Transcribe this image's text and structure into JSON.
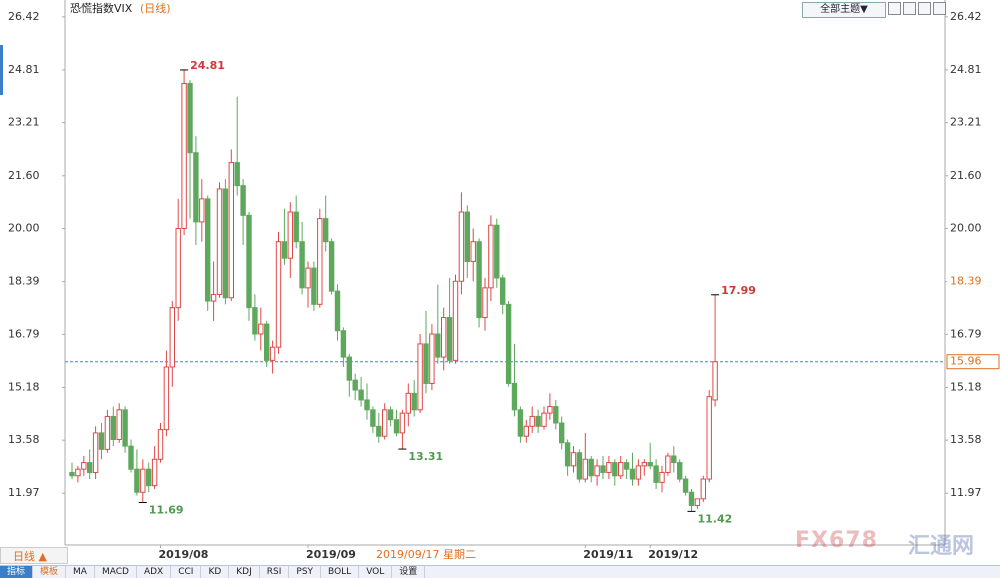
{
  "chart_data": {
    "type": "candlestick",
    "title": "恐慌指数VIX",
    "period": "(日线)",
    "theme_button": "全部主题▼",
    "period_selector": "日线 ▲",
    "tabs": [
      "指标",
      "模板",
      "MA",
      "MACD",
      "ADX",
      "CCI",
      "KD",
      "KDJ",
      "RSI",
      "PSY",
      "BOLL",
      "VOL",
      "设置"
    ],
    "watermark": [
      "FX678",
      "汇通网"
    ],
    "up_color": "#e04848",
    "down_color": "#5ea85e",
    "ylim": [
      10.4,
      26.78
    ],
    "yticks": [
      26.42,
      24.81,
      23.21,
      {
        "value": 21.6,
        "label": "21.60"
      },
      {
        "value": 20,
        "label": "20.00"
      },
      18.39,
      16.79,
      15.18,
      13.58,
      11.97
    ],
    "categories": [
      null,
      null,
      null,
      null,
      null,
      null,
      null,
      null,
      null,
      null,
      null,
      null,
      null,
      null,
      null,
      "2019/08",
      null,
      null,
      null,
      null,
      null,
      null,
      null,
      null,
      null,
      null,
      null,
      null,
      null,
      null,
      null,
      null,
      null,
      null,
      null,
      null,
      null,
      null,
      null,
      null,
      "2019/09",
      null,
      null,
      null,
      null,
      null,
      null,
      null,
      null,
      null,
      null,
      null,
      null,
      null,
      null,
      null,
      null,
      null,
      null,
      null,
      null,
      null,
      null,
      null,
      null,
      null,
      null,
      null,
      null,
      null,
      null,
      null,
      null,
      null,
      null,
      null,
      null,
      null,
      null,
      null,
      null,
      null,
      null,
      null,
      null,
      null,
      null,
      "2019/11",
      null,
      null,
      null,
      null,
      null,
      null,
      null,
      null,
      null,
      null,
      "2019/12",
      null
    ],
    "candles": [
      [
        12.6,
        12.9,
        12.4,
        12.5
      ],
      [
        12.5,
        12.8,
        12.3,
        12.7
      ],
      [
        12.7,
        13.1,
        12.5,
        12.9
      ],
      [
        12.9,
        13.3,
        12.4,
        12.6
      ],
      [
        12.6,
        14.0,
        12.4,
        13.8
      ],
      [
        13.8,
        14.1,
        13.0,
        13.3
      ],
      [
        13.3,
        14.5,
        13.2,
        14.3
      ],
      [
        14.3,
        14.6,
        13.4,
        13.6
      ],
      [
        13.6,
        14.7,
        13.5,
        14.5
      ],
      [
        14.5,
        14.6,
        13.2,
        13.4
      ],
      [
        13.4,
        13.6,
        12.6,
        12.7
      ],
      [
        12.7,
        13.3,
        11.9,
        12.0
      ],
      [
        12.0,
        13.0,
        11.69,
        12.7
      ],
      [
        12.7,
        12.9,
        12.0,
        12.2
      ],
      [
        12.2,
        13.4,
        12.1,
        13.0
      ],
      [
        13.0,
        14.1,
        12.9,
        13.9
      ],
      [
        13.9,
        16.3,
        13.7,
        15.8
      ],
      [
        15.8,
        17.8,
        15.2,
        17.6
      ],
      [
        17.6,
        20.9,
        17.2,
        20.0
      ],
      [
        20.0,
        24.81,
        19.8,
        24.4
      ],
      [
        24.4,
        24.5,
        20.3,
        22.3
      ],
      [
        22.3,
        22.8,
        19.5,
        20.2
      ],
      [
        20.2,
        21.5,
        19.6,
        20.9
      ],
      [
        20.9,
        21.0,
        17.5,
        17.8
      ],
      [
        17.8,
        19.0,
        17.2,
        18.0
      ],
      [
        18.0,
        21.4,
        17.9,
        21.2
      ],
      [
        21.2,
        21.5,
        17.7,
        17.9
      ],
      [
        17.9,
        22.4,
        17.8,
        22.0
      ],
      [
        22.0,
        24.0,
        21.0,
        21.3
      ],
      [
        21.3,
        21.5,
        19.5,
        20.4
      ],
      [
        20.4,
        20.5,
        17.2,
        17.6
      ],
      [
        17.6,
        18.0,
        16.6,
        16.8
      ],
      [
        16.8,
        17.6,
        16.3,
        17.1
      ],
      [
        17.1,
        17.2,
        15.8,
        16.0
      ],
      [
        16.0,
        16.6,
        15.6,
        16.4
      ],
      [
        16.4,
        19.9,
        16.2,
        19.6
      ],
      [
        19.6,
        20.6,
        18.9,
        19.1
      ],
      [
        19.1,
        20.8,
        18.5,
        20.5
      ],
      [
        20.5,
        21.0,
        19.4,
        19.6
      ],
      [
        19.6,
        20.2,
        18.0,
        18.2
      ],
      [
        18.2,
        19.0,
        17.6,
        18.8
      ],
      [
        18.8,
        19.0,
        17.5,
        17.7
      ],
      [
        17.7,
        20.6,
        17.6,
        20.3
      ],
      [
        20.3,
        21.0,
        19.3,
        19.6
      ],
      [
        19.6,
        19.7,
        18.0,
        18.1
      ],
      [
        18.1,
        18.3,
        16.6,
        16.9
      ],
      [
        16.9,
        17.0,
        15.8,
        16.1
      ],
      [
        16.1,
        16.2,
        14.9,
        15.4
      ],
      [
        15.4,
        15.6,
        14.8,
        15.1
      ],
      [
        15.1,
        15.5,
        14.6,
        14.8
      ],
      [
        14.8,
        15.3,
        14.2,
        14.5
      ],
      [
        14.5,
        14.6,
        13.8,
        14.0
      ],
      [
        14.0,
        14.4,
        13.5,
        13.7
      ],
      [
        13.7,
        14.7,
        13.6,
        14.5
      ],
      [
        14.5,
        14.6,
        14.0,
        14.2
      ],
      [
        14.2,
        14.5,
        13.7,
        13.8
      ],
      [
        13.8,
        14.5,
        13.31,
        14.4
      ],
      [
        14.4,
        15.3,
        14.0,
        15.0
      ],
      [
        15.0,
        15.4,
        14.3,
        14.5
      ],
      [
        14.5,
        16.8,
        14.4,
        16.5
      ],
      [
        16.5,
        17.5,
        15.0,
        15.3
      ],
      [
        15.3,
        17.1,
        15.1,
        16.8
      ],
      [
        16.8,
        18.3,
        15.9,
        16.1
      ],
      [
        16.1,
        17.6,
        15.7,
        17.3
      ],
      [
        17.3,
        18.5,
        15.9,
        16.0
      ],
      [
        16.0,
        18.6,
        15.9,
        18.4
      ],
      [
        18.4,
        21.1,
        18.0,
        20.5
      ],
      [
        20.5,
        20.7,
        18.5,
        19.0
      ],
      [
        19.0,
        20.0,
        18.4,
        19.6
      ],
      [
        19.6,
        19.7,
        17.0,
        17.3
      ],
      [
        17.3,
        18.5,
        16.9,
        18.2
      ],
      [
        18.2,
        20.4,
        17.8,
        20.1
      ],
      [
        20.1,
        20.3,
        18.2,
        18.5
      ],
      [
        18.5,
        18.6,
        17.4,
        17.7
      ],
      [
        17.7,
        17.8,
        15.2,
        15.3
      ],
      [
        15.3,
        16.5,
        14.3,
        14.5
      ],
      [
        14.5,
        14.6,
        13.5,
        13.7
      ],
      [
        13.7,
        14.2,
        13.5,
        14.0
      ],
      [
        14.0,
        14.6,
        13.8,
        14.3
      ],
      [
        14.3,
        14.5,
        13.8,
        14.0
      ],
      [
        14.0,
        14.6,
        13.9,
        14.4
      ],
      [
        14.4,
        15.0,
        14.2,
        14.6
      ],
      [
        14.6,
        14.8,
        13.9,
        14.1
      ],
      [
        14.1,
        14.3,
        13.3,
        13.5
      ],
      [
        13.5,
        13.6,
        12.5,
        12.8
      ],
      [
        12.8,
        13.4,
        12.6,
        13.2
      ],
      [
        13.2,
        13.3,
        12.3,
        12.4
      ],
      [
        12.4,
        13.8,
        12.3,
        13.0
      ],
      [
        13.0,
        13.1,
        12.3,
        12.5
      ],
      [
        12.5,
        13.0,
        12.2,
        12.8
      ],
      [
        12.8,
        13.1,
        12.4,
        12.6
      ],
      [
        12.6,
        13.1,
        12.4,
        12.9
      ],
      [
        12.9,
        13.0,
        12.2,
        12.5
      ],
      [
        12.5,
        13.1,
        12.4,
        12.9
      ],
      [
        12.9,
        13.0,
        12.4,
        12.7
      ],
      [
        12.7,
        13.2,
        12.2,
        12.4
      ],
      [
        12.4,
        13.0,
        12.2,
        12.8
      ],
      [
        12.8,
        13.0,
        12.5,
        12.9
      ],
      [
        12.9,
        13.5,
        12.7,
        12.8
      ],
      [
        12.8,
        13.0,
        12.1,
        12.3
      ],
      [
        12.3,
        12.8,
        12.0,
        12.6
      ],
      [
        12.6,
        13.2,
        12.5,
        13.1
      ],
      [
        13.1,
        13.4,
        12.6,
        12.9
      ],
      [
        12.9,
        13.0,
        12.3,
        12.4
      ],
      [
        12.4,
        12.5,
        11.9,
        12.0
      ],
      [
        12.0,
        12.1,
        11.42,
        11.6
      ],
      [
        11.6,
        11.8,
        11.5,
        11.8
      ],
      [
        11.8,
        12.5,
        11.7,
        12.4
      ],
      [
        12.4,
        15.1,
        12.3,
        14.9
      ],
      [
        14.8,
        17.99,
        14.6,
        15.96
      ]
    ],
    "annotations": [
      {
        "index": 19,
        "value": 24.81,
        "side": "high"
      },
      {
        "index": 12,
        "value": 11.69,
        "side": "low"
      },
      {
        "index": 56,
        "value": 13.31,
        "side": "low"
      },
      {
        "index": 105,
        "value": 11.42,
        "side": "low"
      },
      {
        "index": 109,
        "value": 17.99,
        "side": "high"
      }
    ],
    "current_value": 15.96,
    "crosshair": {
      "index": 60,
      "value": 18.39,
      "date": "2019/09/17 星期二"
    }
  }
}
